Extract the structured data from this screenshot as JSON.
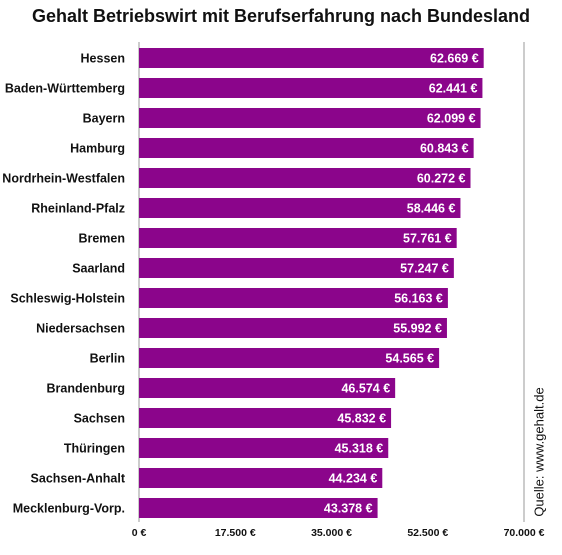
{
  "chart_data": {
    "type": "bar",
    "orientation": "horizontal",
    "title": "Gehalt Betriebswirt mit Berufserfahrung nach Bundesland",
    "source": "Quelle: www.gehalt.de",
    "categories": [
      "Hessen",
      "Baden-Württemberg",
      "Bayern",
      "Hamburg",
      "Nordrhein-Westfalen",
      "Rheinland-Pfalz",
      "Bremen",
      "Saarland",
      "Schleswig-Holstein",
      "Niedersachsen",
      "Berlin",
      "Brandenburg",
      "Sachsen",
      "Thüringen",
      "Sachsen-Anhalt",
      "Mecklenburg-Vorp."
    ],
    "values": [
      62669,
      62441,
      62099,
      60843,
      60272,
      58446,
      57761,
      57247,
      56163,
      55992,
      54565,
      46574,
      45832,
      45318,
      44234,
      43378
    ],
    "value_labels": [
      "62.669 €",
      "62.441 €",
      "62.099 €",
      "60.843 €",
      "60.272 €",
      "58.446 €",
      "57.761 €",
      "57.247 €",
      "56.163 €",
      "55.992 €",
      "54.565 €",
      "46.574 €",
      "45.832 €",
      "45.318 €",
      "44.234 €",
      "43.378 €"
    ],
    "xlim": [
      0,
      70000
    ],
    "xticks": [
      0,
      17500,
      35000,
      52500,
      70000
    ],
    "xtick_labels": [
      "0 €",
      "17.500 €",
      "35.000 €",
      "52.500 €",
      "70.000 €"
    ],
    "grid": "vertical lines at 0 and 70.000 €",
    "bar_color": "#8b058b",
    "label_color": "#ffffff"
  }
}
